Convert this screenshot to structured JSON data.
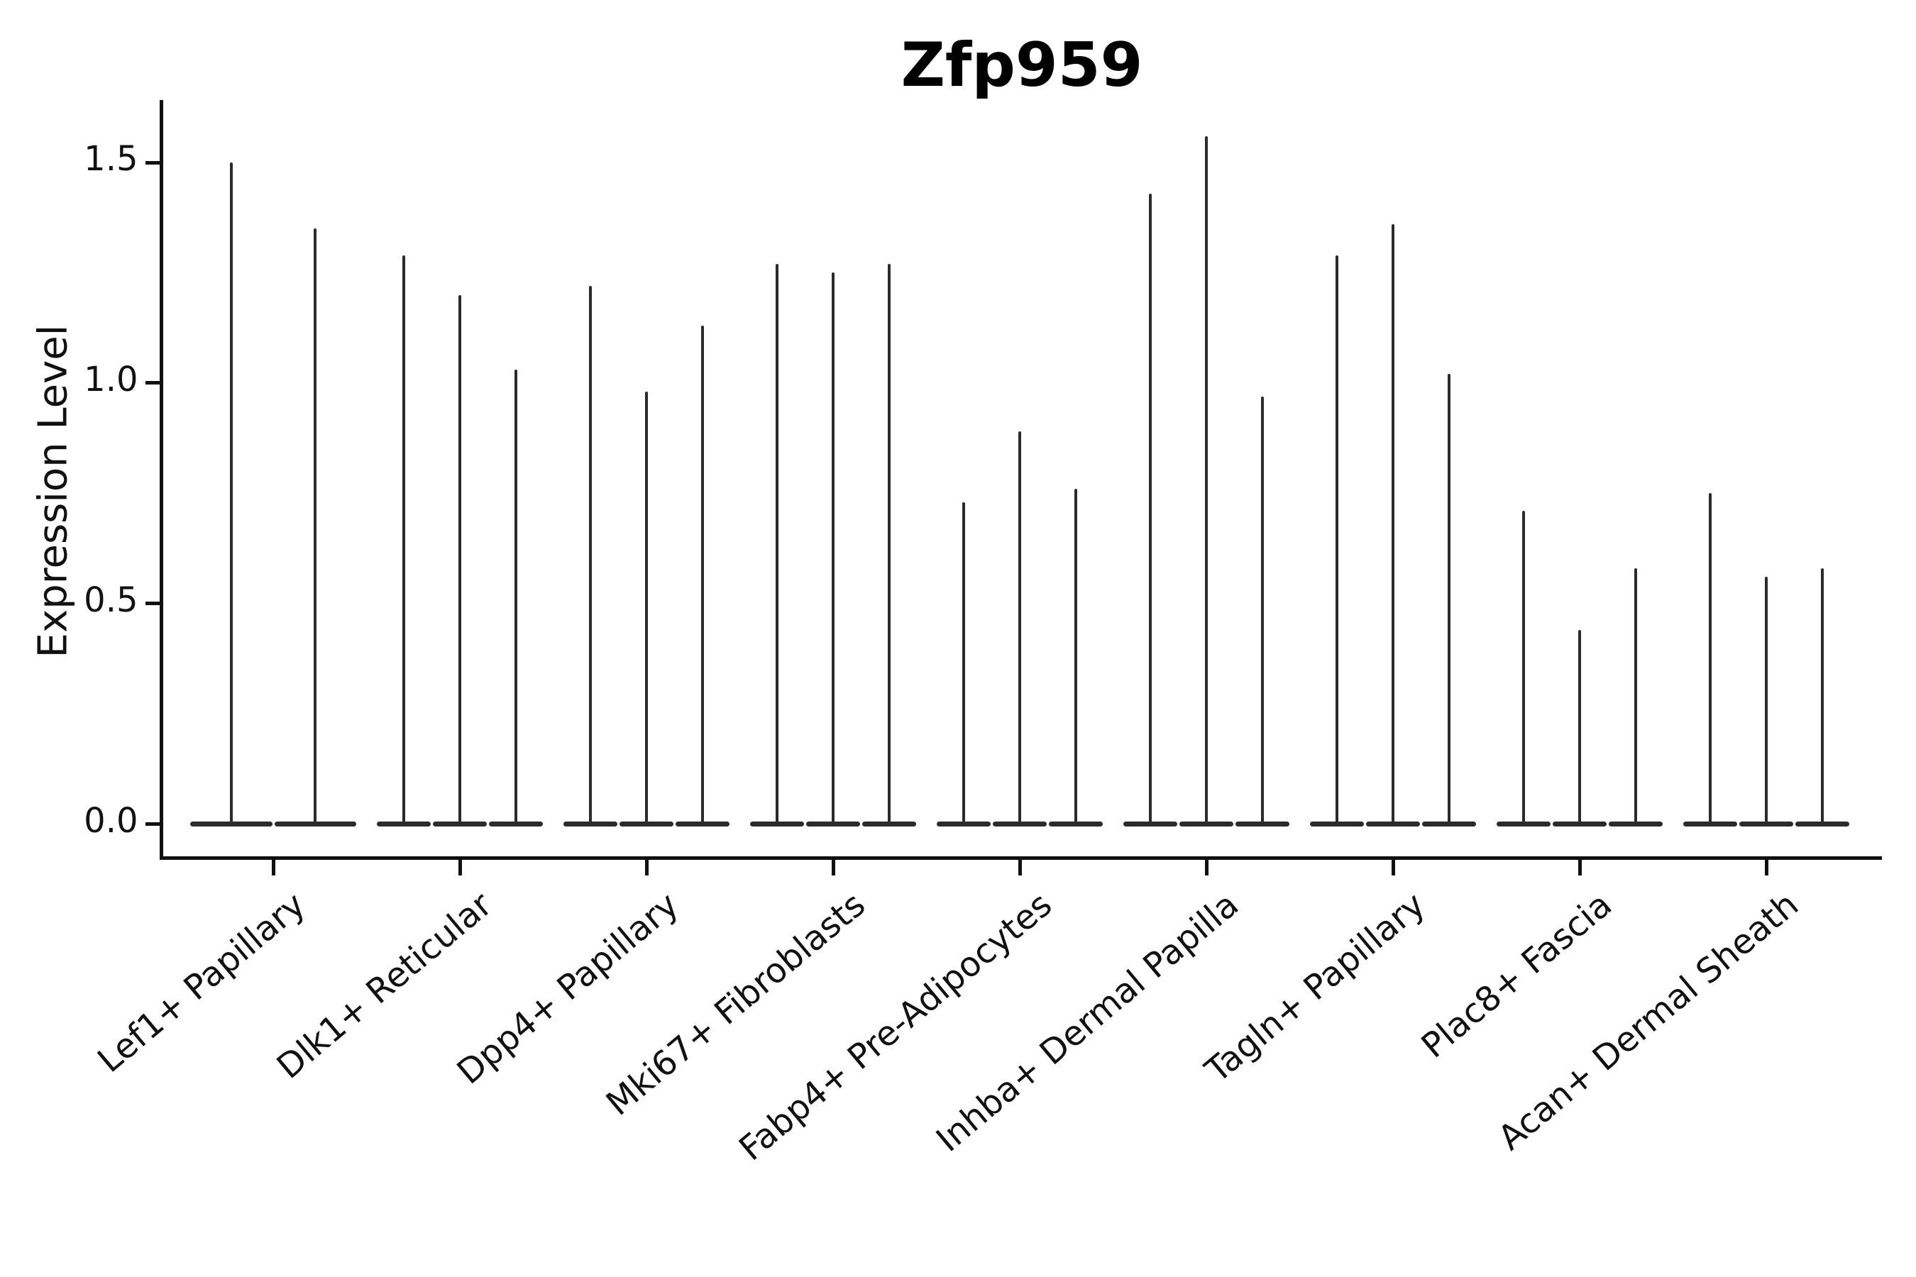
{
  "title": "Zfp959",
  "chart_data": {
    "type": "violin",
    "title": "Zfp959",
    "ylabel": "Expression Level",
    "xlabel": "",
    "yticks": [
      0.0,
      0.5,
      1.0,
      1.5
    ],
    "ylim": [
      -0.08,
      1.64
    ],
    "grid": false,
    "legend": "none",
    "violin_style": "needle-thin spikes with flat wide base at 0; all dark gray",
    "categories": [
      "Lef1+ Papillary",
      "Dlk1+ Reticular",
      "Dpp4+ Papillary",
      "Mki67+ Fibroblasts",
      "Fabp4+ Pre-Adipocytes",
      "Inhba+ Dermal Papilla",
      "Tagln+ Papillary",
      "Plac8+ Fascia",
      "Acan+ Dermal Sheath"
    ],
    "groups": [
      {
        "category": "Lef1+ Papillary",
        "violin_max_values": [
          1.5,
          1.35
        ]
      },
      {
        "category": "Dlk1+ Reticular",
        "violin_max_values": [
          1.29,
          1.2,
          1.03
        ]
      },
      {
        "category": "Dpp4+ Papillary",
        "violin_max_values": [
          1.22,
          0.98,
          1.13
        ]
      },
      {
        "category": "Mki67+ Fibroblasts",
        "violin_max_values": [
          1.27,
          1.25,
          1.27
        ]
      },
      {
        "category": "Fabp4+ Pre-Adipocytes",
        "violin_max_values": [
          0.73,
          0.89,
          0.76
        ]
      },
      {
        "category": "Inhba+ Dermal Papilla",
        "violin_max_values": [
          1.43,
          1.56,
          0.97
        ]
      },
      {
        "category": "Tagln+ Papillary",
        "violin_max_values": [
          1.29,
          1.36,
          1.02
        ]
      },
      {
        "category": "Plac8+ Fascia",
        "violin_max_values": [
          0.71,
          0.44,
          0.58
        ]
      },
      {
        "category": "Acan+ Dermal Sheath",
        "violin_max_values": [
          0.75,
          0.56,
          0.58
        ]
      }
    ],
    "colors": {
      "violin": "#2b2b2b",
      "axis": "#111111",
      "text": "#111111",
      "background": "#ffffff"
    }
  }
}
